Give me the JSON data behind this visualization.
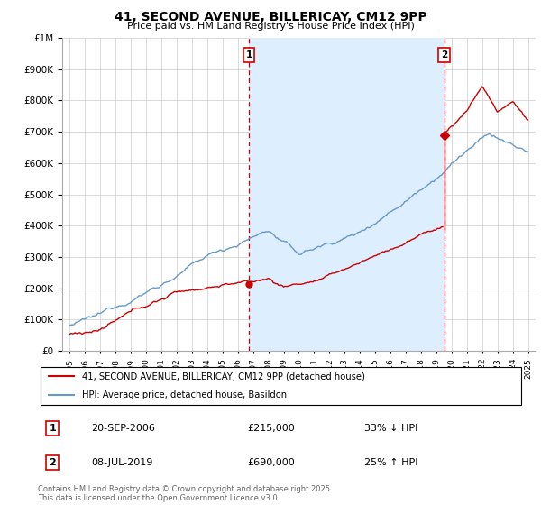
{
  "title": "41, SECOND AVENUE, BILLERICAY, CM12 9PP",
  "subtitle": "Price paid vs. HM Land Registry's House Price Index (HPI)",
  "legend_line1": "41, SECOND AVENUE, BILLERICAY, CM12 9PP (detached house)",
  "legend_line2": "HPI: Average price, detached house, Basildon",
  "footer": "Contains HM Land Registry data © Crown copyright and database right 2025.\nThis data is licensed under the Open Government Licence v3.0.",
  "annotation1_date": "20-SEP-2006",
  "annotation1_price": "£215,000",
  "annotation1_hpi": "33% ↓ HPI",
  "annotation2_date": "08-JUL-2019",
  "annotation2_price": "£690,000",
  "annotation2_hpi": "25% ↑ HPI",
  "sale1_x": 2006.72,
  "sale1_y": 215000,
  "sale2_x": 2019.52,
  "sale2_y": 690000,
  "sale2_prev_y": 390000,
  "line_color_price": "#cc0000",
  "line_color_hpi": "#6699cc",
  "shade_color": "#ddeeff",
  "vline_color": "#cc0000",
  "background_color": "#ffffff",
  "grid_color": "#cccccc",
  "ylim": [
    0,
    1000000
  ],
  "xlim": [
    1994.5,
    2025.5
  ],
  "yticks": [
    0,
    100000,
    200000,
    300000,
    400000,
    500000,
    600000,
    700000,
    800000,
    900000,
    1000000
  ],
  "xticks": [
    1995,
    1996,
    1997,
    1998,
    1999,
    2000,
    2001,
    2002,
    2003,
    2004,
    2005,
    2006,
    2007,
    2008,
    2009,
    2010,
    2011,
    2012,
    2013,
    2014,
    2015,
    2016,
    2017,
    2018,
    2019,
    2020,
    2021,
    2022,
    2023,
    2024,
    2025
  ]
}
